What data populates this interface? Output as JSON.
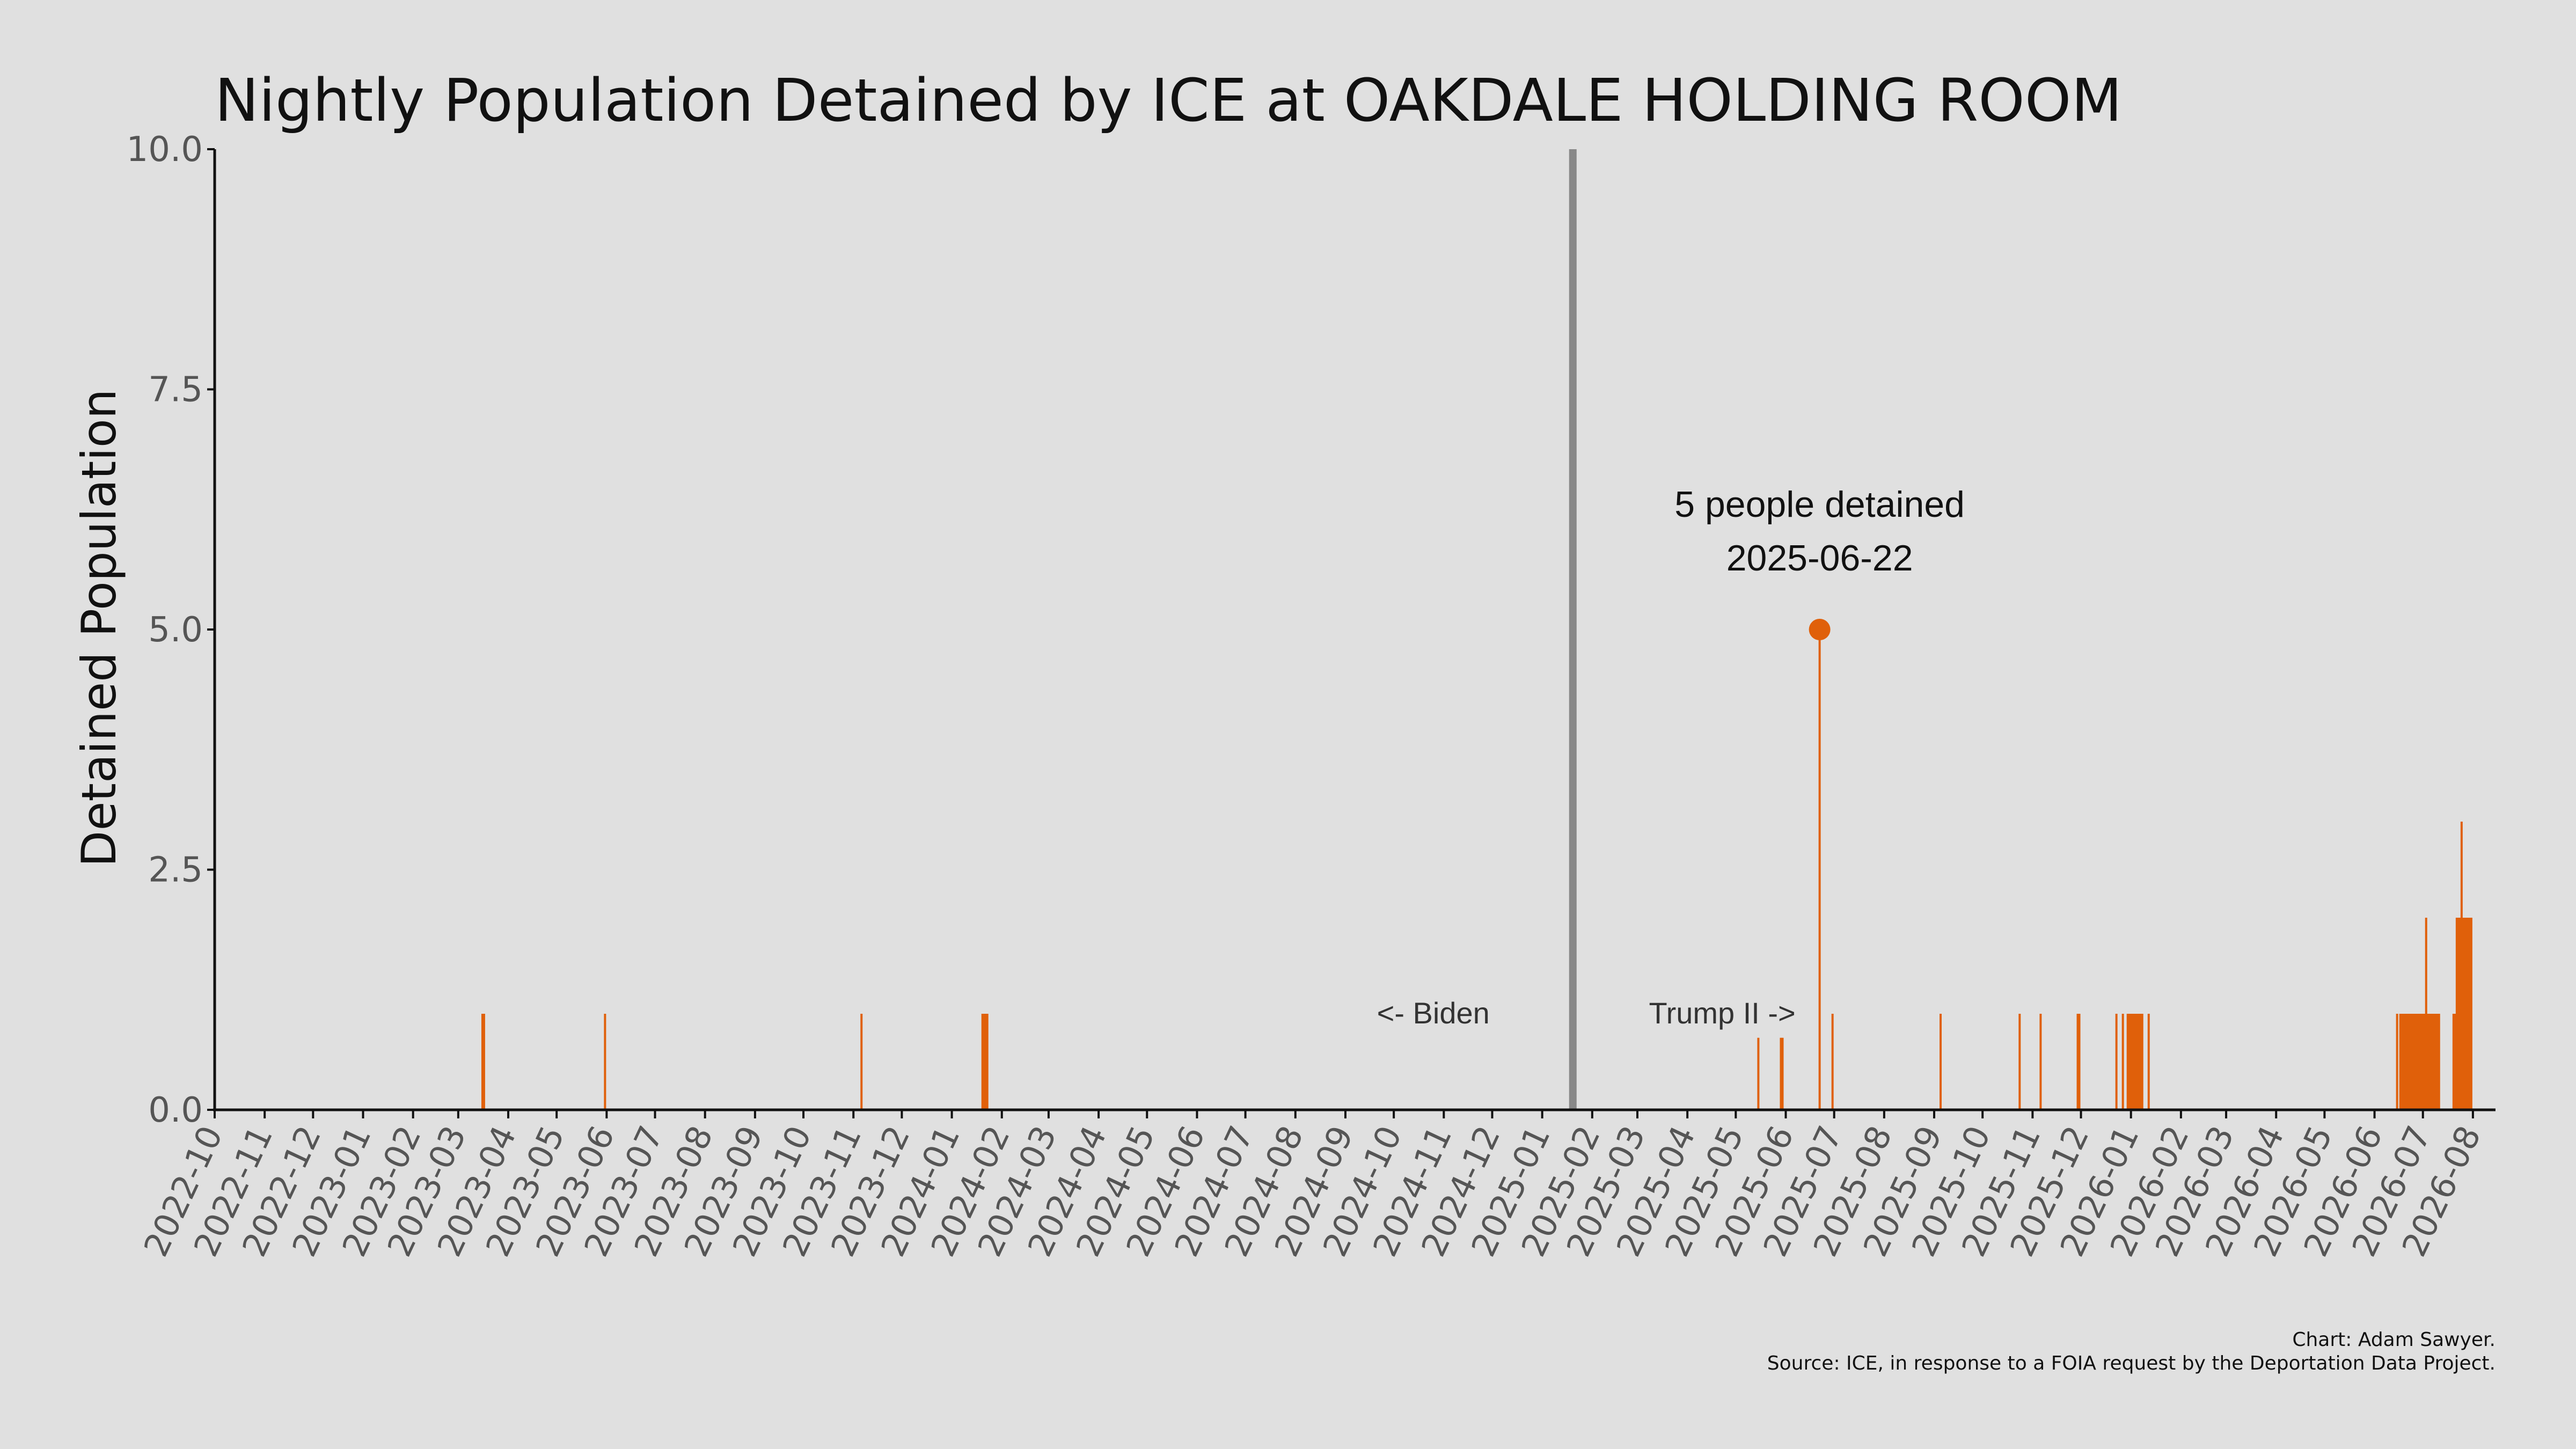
{
  "chart_data": {
    "type": "bar",
    "title": "Nightly Population Detained by ICE at OAKDALE HOLDING ROOM",
    "ylabel": "Detained Population",
    "xlabel": "",
    "ylim": [
      0,
      10
    ],
    "xlim": [
      "2022-10-01",
      "2026-08-15"
    ],
    "yticks": [
      "0.0",
      "2.5",
      "5.0",
      "7.5",
      "10.0"
    ],
    "xticks": [
      "2022-10",
      "2022-11",
      "2022-12",
      "2023-01",
      "2023-02",
      "2023-03",
      "2023-04",
      "2023-05",
      "2023-06",
      "2023-07",
      "2023-08",
      "2023-09",
      "2023-10",
      "2023-11",
      "2023-12",
      "2024-01",
      "2024-02",
      "2024-03",
      "2024-04",
      "2024-05",
      "2024-06",
      "2024-07",
      "2024-08",
      "2024-09",
      "2024-10",
      "2024-11",
      "2024-12",
      "2025-01",
      "2025-02",
      "2025-03",
      "2025-04",
      "2025-05",
      "2025-06",
      "2025-07",
      "2025-08",
      "2025-09",
      "2025-10",
      "2025-11",
      "2025-12",
      "2026-01",
      "2026-02",
      "2026-03",
      "2026-04",
      "2026-05",
      "2026-06",
      "2026-07",
      "2026-08"
    ],
    "bar_color": "#e0600a",
    "divider_color": "#888888",
    "divider_date": "2025-01-20",
    "grid": false,
    "data": [
      {
        "date": "2023-03-16",
        "value": 1
      },
      {
        "date": "2023-03-17",
        "value": 1
      },
      {
        "date": "2023-05-31",
        "value": 1
      },
      {
        "date": "2023-11-06",
        "value": 1
      },
      {
        "date": "2024-01-20",
        "value": 1
      },
      {
        "date": "2024-01-21",
        "value": 1
      },
      {
        "date": "2024-01-22",
        "value": 1
      },
      {
        "date": "2024-01-23",
        "value": 1
      },
      {
        "date": "2025-05-15",
        "value": 0.75
      },
      {
        "date": "2025-05-29",
        "value": 0.75
      },
      {
        "date": "2025-05-30",
        "value": 0.75
      },
      {
        "date": "2025-06-22",
        "value": 5
      },
      {
        "date": "2025-06-30",
        "value": 1
      },
      {
        "date": "2025-09-05",
        "value": 1
      },
      {
        "date": "2025-10-24",
        "value": 1
      },
      {
        "date": "2025-11-06",
        "value": 1
      },
      {
        "date": "2025-11-29",
        "value": 1
      },
      {
        "date": "2025-11-30",
        "value": 1
      },
      {
        "date": "2025-12-23",
        "value": 1
      },
      {
        "date": "2025-12-27",
        "value": 1
      },
      {
        "date": "2025-12-30",
        "value": 1
      },
      {
        "date": "2025-12-31",
        "value": 1
      },
      {
        "date": "2026-01-01",
        "value": 1
      },
      {
        "date": "2026-01-02",
        "value": 1
      },
      {
        "date": "2026-01-03",
        "value": 1
      },
      {
        "date": "2026-01-04",
        "value": 1
      },
      {
        "date": "2026-01-05",
        "value": 1
      },
      {
        "date": "2026-01-06",
        "value": 1
      },
      {
        "date": "2026-01-07",
        "value": 1
      },
      {
        "date": "2026-01-08",
        "value": 1
      },
      {
        "date": "2026-01-12",
        "value": 1
      },
      {
        "date": "2026-06-15",
        "value": 1
      },
      {
        "date": "2026-06-17",
        "value": 1
      },
      {
        "date": "2026-06-18",
        "value": 1
      },
      {
        "date": "2026-06-19",
        "value": 1
      },
      {
        "date": "2026-06-20",
        "value": 1
      },
      {
        "date": "2026-06-21",
        "value": 1
      },
      {
        "date": "2026-06-22",
        "value": 1
      },
      {
        "date": "2026-06-23",
        "value": 1
      },
      {
        "date": "2026-06-24",
        "value": 1
      },
      {
        "date": "2026-06-25",
        "value": 1
      },
      {
        "date": "2026-06-26",
        "value": 1
      },
      {
        "date": "2026-06-27",
        "value": 1
      },
      {
        "date": "2026-06-28",
        "value": 1
      },
      {
        "date": "2026-06-29",
        "value": 1
      },
      {
        "date": "2026-06-30",
        "value": 1
      },
      {
        "date": "2026-07-01",
        "value": 1
      },
      {
        "date": "2026-07-02",
        "value": 1
      },
      {
        "date": "2026-07-03",
        "value": 2
      },
      {
        "date": "2026-07-04",
        "value": 1
      },
      {
        "date": "2026-07-05",
        "value": 1
      },
      {
        "date": "2026-07-06",
        "value": 1
      },
      {
        "date": "2026-07-07",
        "value": 1
      },
      {
        "date": "2026-07-08",
        "value": 1
      },
      {
        "date": "2026-07-09",
        "value": 1
      },
      {
        "date": "2026-07-10",
        "value": 1
      },
      {
        "date": "2026-07-11",
        "value": 1
      },
      {
        "date": "2026-07-20",
        "value": 1
      },
      {
        "date": "2026-07-21",
        "value": 1
      },
      {
        "date": "2026-07-22",
        "value": 2
      },
      {
        "date": "2026-07-23",
        "value": 2
      },
      {
        "date": "2026-07-24",
        "value": 2
      },
      {
        "date": "2026-07-25",
        "value": 3
      },
      {
        "date": "2026-07-26",
        "value": 2
      },
      {
        "date": "2026-07-27",
        "value": 2
      },
      {
        "date": "2026-07-28",
        "value": 2
      },
      {
        "date": "2026-07-29",
        "value": 2
      },
      {
        "date": "2026-07-30",
        "value": 2
      },
      {
        "date": "2026-07-31",
        "value": 2
      }
    ],
    "highlight": {
      "date": "2025-06-22",
      "value": 5
    },
    "annotations": {
      "peak_line1": "5 people detained",
      "peak_line2": "2025-06-22",
      "left_era": "<- Biden",
      "right_era": "Trump II ->"
    },
    "credits": {
      "line1": "Chart: Adam Sawyer.",
      "line2": "Source: ICE, in response to a FOIA request by the Deportation Data Project."
    }
  }
}
